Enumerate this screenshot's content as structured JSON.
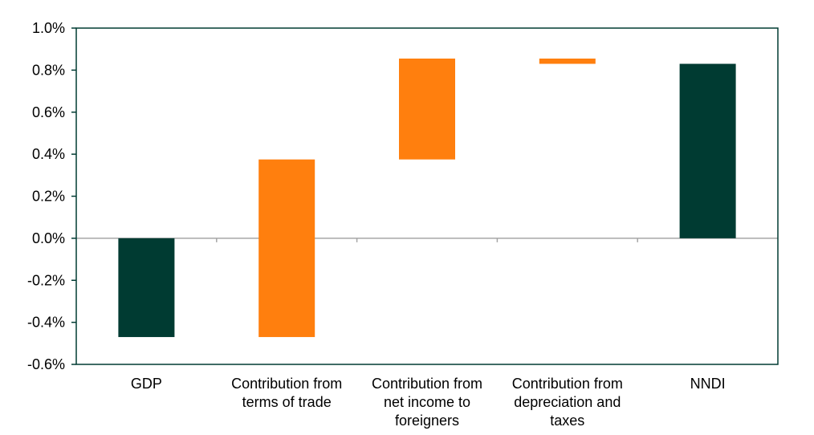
{
  "chart_data": {
    "type": "bar",
    "subtype": "waterfall",
    "categories": [
      [
        "GDP"
      ],
      [
        "Contribution from",
        "terms of trade"
      ],
      [
        "Contribution from",
        "net income to",
        "foreigners"
      ],
      [
        "Contribution from",
        "depreciation and",
        "taxes"
      ],
      [
        "NNDI"
      ]
    ],
    "bars": [
      {
        "from": 0.0,
        "to": -0.47,
        "kind": "total"
      },
      {
        "from": -0.47,
        "to": 0.375,
        "kind": "contribution"
      },
      {
        "from": 0.375,
        "to": 0.855,
        "kind": "contribution"
      },
      {
        "from": 0.855,
        "to": 0.83,
        "kind": "contribution"
      },
      {
        "from": 0.0,
        "to": 0.83,
        "kind": "total"
      }
    ],
    "ylim": [
      -0.6,
      1.0
    ],
    "yticks": [
      1.0,
      0.8,
      0.6,
      0.4,
      0.2,
      0.0,
      -0.2,
      -0.4,
      -0.6
    ],
    "ytick_labels": [
      "1.0%",
      "0.8%",
      "0.6%",
      "0.4%",
      "0.2%",
      "0.0%",
      "-0.2%",
      "-0.4%",
      "-0.6%"
    ],
    "title": "",
    "xlabel": "",
    "ylabel": "",
    "grid": false,
    "colors": {
      "total": "#003b32",
      "contribution": "#ff7f0e",
      "frame": "#003b32",
      "zero_line": "#a6a6a6"
    }
  }
}
